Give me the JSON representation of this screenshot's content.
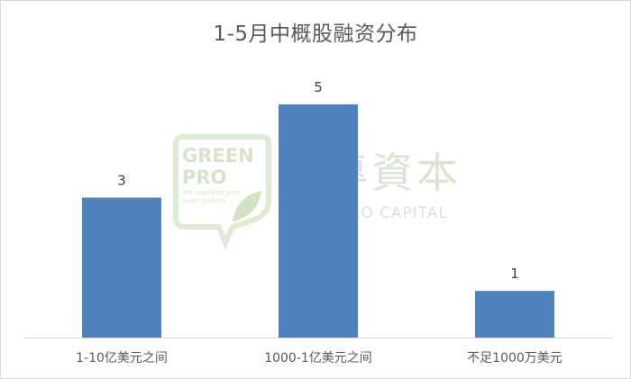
{
  "chart_data": {
    "type": "bar",
    "title": "1-5月中概股融资分布",
    "categories": [
      "1-10亿美元之间",
      "1000-1亿美元之间",
      "不足1000万美元"
    ],
    "values": [
      3,
      5,
      1
    ],
    "ylim": [
      0,
      5.5
    ],
    "grid": false,
    "legend": "none",
    "xlabel": "",
    "ylabel": "",
    "bar_color": "#4f81bd"
  },
  "watermark": {
    "logo_word_1": "GREEN",
    "logo_word_2": "PRO",
    "tagline_1": "We capitalize your",
    "tagline_2": "value globally",
    "chinese_name": "綠專資本",
    "english_name": "GREENPRO CAPITAL",
    "color": "#c7d9b4"
  }
}
